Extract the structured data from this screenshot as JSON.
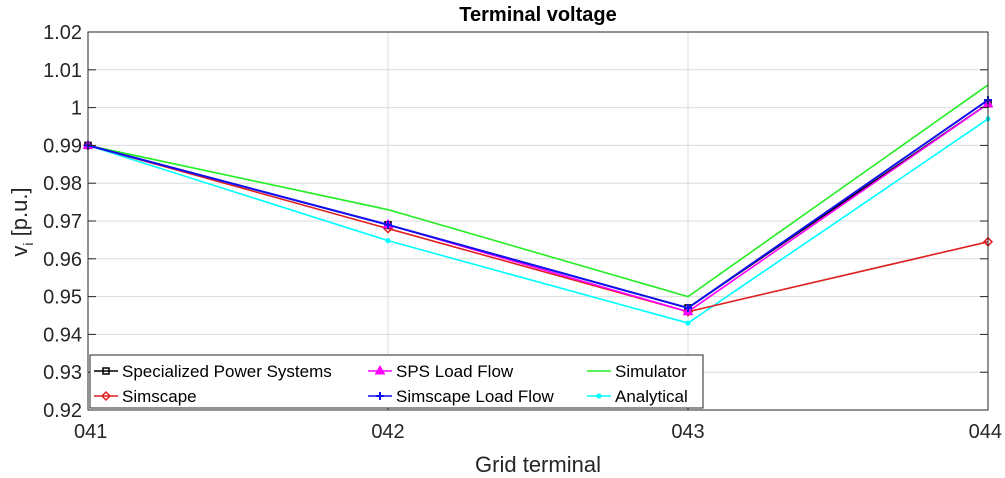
{
  "chart_data": {
    "type": "line",
    "title": "Terminal voltage",
    "xlabel": "Grid terminal",
    "ylabel_main": "v",
    "ylabel_sub": "i",
    "ylabel_unit": "[p.u.]",
    "categories": [
      "041",
      "042",
      "043",
      "044"
    ],
    "ylim": [
      0.92,
      1.02
    ],
    "yticks": [
      "0.92",
      "0.93",
      "0.94",
      "0.95",
      "0.96",
      "0.97",
      "0.98",
      "0.99",
      "1",
      "1.01",
      "1.02"
    ],
    "grid": true,
    "legend_position": "bottom-left",
    "series": [
      {
        "name": "Specialized Power Systems",
        "color": "#000000",
        "marker": "square",
        "values": [
          0.99,
          0.969,
          0.947,
          1.001
        ]
      },
      {
        "name": "Simscape",
        "color": "#e02020",
        "marker": "diamond",
        "values": [
          0.99,
          0.968,
          0.946,
          0.9645
        ]
      },
      {
        "name": "SPS Load Flow",
        "color": "#ff00ff",
        "marker": "triangle",
        "values": [
          0.99,
          0.969,
          0.946,
          1.001
        ]
      },
      {
        "name": "Simscape Load Flow",
        "color": "#1010ee",
        "marker": "plus",
        "values": [
          0.99,
          0.969,
          0.947,
          1.002
        ]
      },
      {
        "name": "Simulator",
        "color": "#22ee22",
        "marker": "none",
        "values": [
          0.99,
          0.973,
          0.95,
          1.006
        ]
      },
      {
        "name": "Analytical",
        "color": "#00ffff",
        "marker": "dot",
        "values": [
          0.99,
          0.9648,
          0.943,
          0.997
        ]
      }
    ]
  }
}
